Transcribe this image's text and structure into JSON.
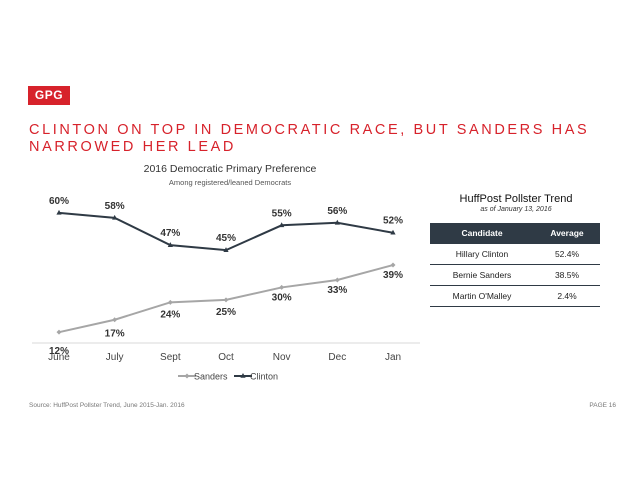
{
  "logo": "GPG",
  "headline_line1": "CLINTON ON TOP IN DEMOCRATIC RACE, BUT SANDERS HAS",
  "headline_line2": "NARROWED HER LEAD",
  "chart_data": {
    "type": "line",
    "title": "2016 Democratic Primary Preference",
    "subtitle": "Among registered/leaned Democrats",
    "categories": [
      "June",
      "July",
      "Sept",
      "Oct",
      "Nov",
      "Dec",
      "Jan"
    ],
    "series": [
      {
        "name": "Sanders",
        "values": [
          12,
          17,
          24,
          25,
          30,
          33,
          39
        ],
        "labels": [
          "12%",
          "17%",
          "24%",
          "25%",
          "30%",
          "33%",
          "39%"
        ],
        "color": "#a6a6a6"
      },
      {
        "name": "Clinton",
        "values": [
          60,
          58,
          47,
          45,
          55,
          56,
          52
        ],
        "labels": [
          "60%",
          "58%",
          "47%",
          "45%",
          "55%",
          "56%",
          "52%"
        ],
        "color": "#2f3a45"
      }
    ],
    "ylim": [
      0,
      70
    ],
    "grid": false,
    "legend": "bottom"
  },
  "table": {
    "title": "HuffPost Pollster Trend",
    "subtitle": "as of January 13, 2016",
    "headers": [
      "Candidate",
      "Average"
    ],
    "rows": [
      [
        "Hillary Clinton",
        "52.4%"
      ],
      [
        "Bernie Sanders",
        "38.5%"
      ],
      [
        "Martin O'Malley",
        "2.4%"
      ]
    ]
  },
  "footer": {
    "source": "Source: HuffPost Pollster Trend, June 2015-Jan. 2016",
    "page": "PAGE 16"
  },
  "colors": {
    "accent": "#d7222b",
    "clinton": "#2f3a45",
    "sanders": "#a6a6a6"
  }
}
